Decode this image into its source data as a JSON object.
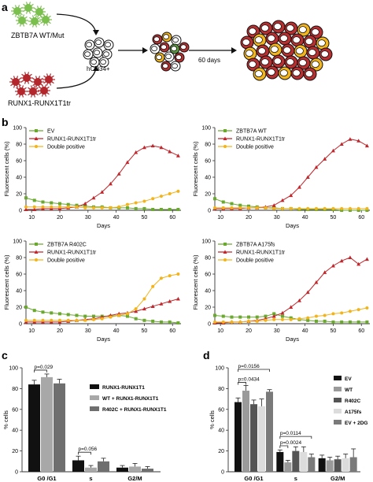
{
  "panel_labels": [
    "a",
    "b",
    "c",
    "d"
  ],
  "schematic": {
    "label_top": "ZBTB7A WT/Mut",
    "label_bottom": "RUNX1-RUNX1T1tr",
    "label_cells": "hCD34+",
    "label_time": "60 days"
  },
  "colors": {
    "ev": "#6aa82f",
    "runx": "#c0262b",
    "double": "#f2b41a",
    "virus_green": "#7bbf4e",
    "virus_red": "#b3262c",
    "cell_red": "#b72f2f",
    "cell_yellow": "#f2b51c",
    "cell_green": "#5a9a3a"
  },
  "chart_data": [
    {
      "type": "line",
      "panel": "b1",
      "xlabel": "Days",
      "ylabel": "Fluorescent cells (%)",
      "xlim": [
        8,
        63
      ],
      "ylim": [
        0,
        100
      ],
      "xticks": [
        10,
        20,
        30,
        40,
        50,
        60
      ],
      "yticks": [
        0,
        20,
        40,
        60,
        80,
        100
      ],
      "legend_position": "top-left",
      "series": [
        {
          "name": "EV",
          "color": "#6aa82f",
          "marker": "square",
          "x": [
            8,
            11,
            14,
            17,
            20,
            23,
            26,
            29,
            32,
            35,
            38,
            41,
            44,
            47,
            50,
            53,
            56,
            59,
            62
          ],
          "y": [
            15,
            12,
            10,
            9,
            8,
            7,
            6,
            5,
            4,
            4,
            3,
            3,
            3,
            2,
            2,
            1,
            1,
            1,
            1
          ]
        },
        {
          "name": "RUNX1-RUNX1T1tr",
          "color": "#c0262b",
          "marker": "triangle",
          "x": [
            8,
            11,
            14,
            17,
            20,
            23,
            26,
            29,
            32,
            35,
            38,
            41,
            44,
            47,
            50,
            53,
            56,
            59,
            62
          ],
          "y": [
            1,
            1,
            2,
            2,
            2,
            3,
            4,
            8,
            15,
            22,
            32,
            44,
            58,
            70,
            76,
            78,
            76,
            71,
            66
          ]
        },
        {
          "name": "Double positive",
          "color": "#f2b41a",
          "marker": "circle",
          "x": [
            8,
            11,
            14,
            17,
            20,
            23,
            26,
            29,
            32,
            35,
            38,
            41,
            44,
            47,
            50,
            53,
            56,
            59,
            62
          ],
          "y": [
            4,
            4,
            4,
            4,
            4,
            4,
            4,
            3,
            3,
            3,
            3,
            4,
            7,
            9,
            11,
            14,
            17,
            20,
            23
          ]
        }
      ]
    },
    {
      "type": "line",
      "panel": "b2",
      "xlabel": "Days",
      "ylabel": "Fluorescent cells (%)",
      "xlim": [
        8,
        63
      ],
      "ylim": [
        0,
        100
      ],
      "xticks": [
        10,
        20,
        30,
        40,
        50,
        60
      ],
      "yticks": [
        0,
        20,
        40,
        60,
        80,
        100
      ],
      "legend_position": "top-left",
      "series": [
        {
          "name": "ZBTB7A WT",
          "color": "#6aa82f",
          "marker": "square",
          "x": [
            8,
            11,
            14,
            17,
            20,
            23,
            26,
            29,
            32,
            35,
            38,
            41,
            44,
            47,
            50,
            53,
            56,
            59,
            62
          ],
          "y": [
            14,
            10,
            8,
            6,
            5,
            4,
            3,
            3,
            2,
            2,
            1,
            1,
            1,
            1,
            1,
            0,
            0,
            0,
            0
          ]
        },
        {
          "name": "RUNX1-RUNX1T1tr",
          "color": "#c0262b",
          "marker": "triangle",
          "x": [
            8,
            11,
            14,
            17,
            20,
            23,
            26,
            29,
            32,
            35,
            38,
            41,
            44,
            47,
            50,
            53,
            56,
            59,
            62
          ],
          "y": [
            2,
            2,
            2,
            2,
            3,
            3,
            4,
            6,
            12,
            18,
            28,
            40,
            52,
            62,
            72,
            80,
            86,
            84,
            78
          ]
        },
        {
          "name": "Double positive",
          "color": "#f2b41a",
          "marker": "circle",
          "x": [
            8,
            11,
            14,
            17,
            20,
            23,
            26,
            29,
            32,
            35,
            38,
            41,
            44,
            47,
            50,
            53,
            56,
            59,
            62
          ],
          "y": [
            3,
            3,
            3,
            3,
            3,
            3,
            3,
            2,
            2,
            2,
            2,
            2,
            2,
            2,
            2,
            2,
            2,
            2,
            2
          ]
        }
      ]
    },
    {
      "type": "line",
      "panel": "b3",
      "xlabel": "Days",
      "ylabel": "Fluorescent cells (%)",
      "xlim": [
        8,
        63
      ],
      "ylim": [
        0,
        100
      ],
      "xticks": [
        10,
        20,
        30,
        40,
        50,
        60
      ],
      "yticks": [
        0,
        20,
        40,
        60,
        80,
        100
      ],
      "legend_position": "top-left",
      "series": [
        {
          "name": "ZBTB7A R402C",
          "color": "#6aa82f",
          "marker": "square",
          "x": [
            8,
            11,
            14,
            17,
            20,
            23,
            26,
            29,
            32,
            35,
            38,
            41,
            44,
            47,
            50,
            53,
            56,
            59,
            62
          ],
          "y": [
            20,
            16,
            14,
            13,
            12,
            11,
            10,
            9,
            9,
            9,
            9,
            10,
            9,
            6,
            4,
            3,
            2,
            2,
            1
          ]
        },
        {
          "name": "RUNX1-RUNX1T1tr",
          "color": "#c0262b",
          "marker": "triangle",
          "x": [
            8,
            11,
            14,
            17,
            20,
            23,
            26,
            29,
            32,
            35,
            38,
            41,
            44,
            47,
            50,
            53,
            56,
            59,
            62
          ],
          "y": [
            2,
            2,
            2,
            2,
            2,
            3,
            4,
            5,
            6,
            8,
            10,
            12,
            13,
            15,
            18,
            21,
            24,
            27,
            30
          ]
        },
        {
          "name": "Double positive",
          "color": "#f2b41a",
          "marker": "circle",
          "x": [
            8,
            11,
            14,
            17,
            20,
            23,
            26,
            29,
            32,
            35,
            38,
            41,
            44,
            47,
            50,
            53,
            56,
            59,
            62
          ],
          "y": [
            4,
            4,
            4,
            4,
            4,
            4,
            4,
            4,
            5,
            6,
            8,
            10,
            12,
            18,
            30,
            45,
            55,
            58,
            60
          ]
        }
      ]
    },
    {
      "type": "line",
      "panel": "b4",
      "xlabel": "Days",
      "ylabel": "Fluorescent cells (%)",
      "xlim": [
        8,
        63
      ],
      "ylim": [
        0,
        100
      ],
      "xticks": [
        10,
        20,
        30,
        40,
        50,
        60
      ],
      "yticks": [
        0,
        20,
        40,
        60,
        80,
        100
      ],
      "legend_position": "top-left",
      "series": [
        {
          "name": "ZBTB7A A175fs",
          "color": "#6aa82f",
          "marker": "square",
          "x": [
            8,
            11,
            14,
            17,
            20,
            23,
            26,
            29,
            32,
            35,
            38,
            41,
            44,
            47,
            50,
            53,
            56,
            59,
            62
          ],
          "y": [
            10,
            9,
            8,
            8,
            8,
            8,
            9,
            12,
            9,
            7,
            5,
            4,
            3,
            3,
            2,
            2,
            2,
            2,
            2
          ]
        },
        {
          "name": "RUNX1-RUNX1T1tr",
          "color": "#c0262b",
          "marker": "triangle",
          "x": [
            8,
            11,
            14,
            17,
            20,
            23,
            26,
            29,
            32,
            35,
            38,
            41,
            44,
            47,
            50,
            53,
            56,
            59,
            62
          ],
          "y": [
            1,
            1,
            2,
            2,
            3,
            4,
            6,
            9,
            13,
            20,
            28,
            38,
            50,
            62,
            70,
            76,
            80,
            72,
            78
          ]
        },
        {
          "name": "Double positive",
          "color": "#f2b41a",
          "marker": "circle",
          "x": [
            8,
            11,
            14,
            17,
            20,
            23,
            26,
            29,
            32,
            35,
            38,
            41,
            44,
            47,
            50,
            53,
            56,
            59,
            62
          ],
          "y": [
            2,
            2,
            2,
            2,
            3,
            3,
            4,
            5,
            5,
            5,
            6,
            7,
            9,
            10,
            12,
            13,
            15,
            17,
            19
          ]
        }
      ]
    },
    {
      "type": "bar",
      "panel": "c",
      "ylabel": "% cells",
      "ylim": [
        0,
        100
      ],
      "yticks": [
        0,
        20,
        40,
        60,
        80,
        100
      ],
      "categories": [
        "G0 /G1",
        "s",
        "G2/M"
      ],
      "legend_position": "right",
      "series": [
        {
          "name": "RUNX1-RUNX1T1",
          "color": "#111111",
          "values": [
            84,
            11,
            4
          ],
          "errors": [
            4,
            4,
            2
          ]
        },
        {
          "name": "WT + RUNX1-RUNX1T1",
          "color": "#a8a8a8",
          "values": [
            91,
            4,
            5
          ],
          "errors": [
            3,
            2,
            3
          ]
        },
        {
          "name": "R402C + RUNX1-RUNX1T1",
          "color": "#6f6f6f",
          "values": [
            85,
            10,
            3
          ],
          "errors": [
            4,
            3,
            2
          ]
        }
      ],
      "annotations": [
        {
          "text": "p=0.029",
          "category": "G0 /G1",
          "between": [
            "RUNX1-RUNX1T1",
            "WT + RUNX1-RUNX1T1"
          ]
        },
        {
          "text": "p=0.056",
          "category": "s",
          "between": [
            "RUNX1-RUNX1T1",
            "WT + RUNX1-RUNX1T1"
          ]
        }
      ]
    },
    {
      "type": "bar",
      "panel": "d",
      "ylabel": "% cells",
      "ylim": [
        0,
        100
      ],
      "yticks": [
        0,
        20,
        40,
        60,
        80,
        100
      ],
      "categories": [
        "G0 /G1",
        "s",
        "G2/M"
      ],
      "legend_position": "right",
      "series": [
        {
          "name": "EV",
          "color": "#111111",
          "values": [
            67,
            19,
            13
          ],
          "errors": [
            4,
            2,
            3
          ]
        },
        {
          "name": "WT",
          "color": "#9a9a9a",
          "values": [
            78,
            9,
            11
          ],
          "errors": [
            5,
            2,
            3
          ]
        },
        {
          "name": "R402C",
          "color": "#555555",
          "values": [
            65,
            20,
            12
          ],
          "errors": [
            4,
            4,
            3
          ]
        },
        {
          "name": "A175fs",
          "color": "#dcdcdc",
          "values": [
            63,
            19,
            13
          ],
          "errors": [
            7,
            5,
            4
          ]
        },
        {
          "name": "EV + 2DG",
          "color": "#7a7a7a",
          "values": [
            77,
            14,
            14
          ],
          "errors": [
            2,
            3,
            8
          ]
        }
      ],
      "annotations": [
        {
          "text": "p=0.0156",
          "category": "G0 /G1",
          "between": [
            "EV",
            "EV + 2DG"
          ]
        },
        {
          "text": "p=0.0434",
          "category": "G0 /G1",
          "between": [
            "EV",
            "WT"
          ]
        },
        {
          "text": "p=0.0114",
          "category": "s",
          "between": [
            "EV",
            "EV + 2DG"
          ]
        },
        {
          "text": "p=0.0024",
          "category": "s",
          "between": [
            "EV",
            "WT"
          ]
        }
      ]
    }
  ]
}
